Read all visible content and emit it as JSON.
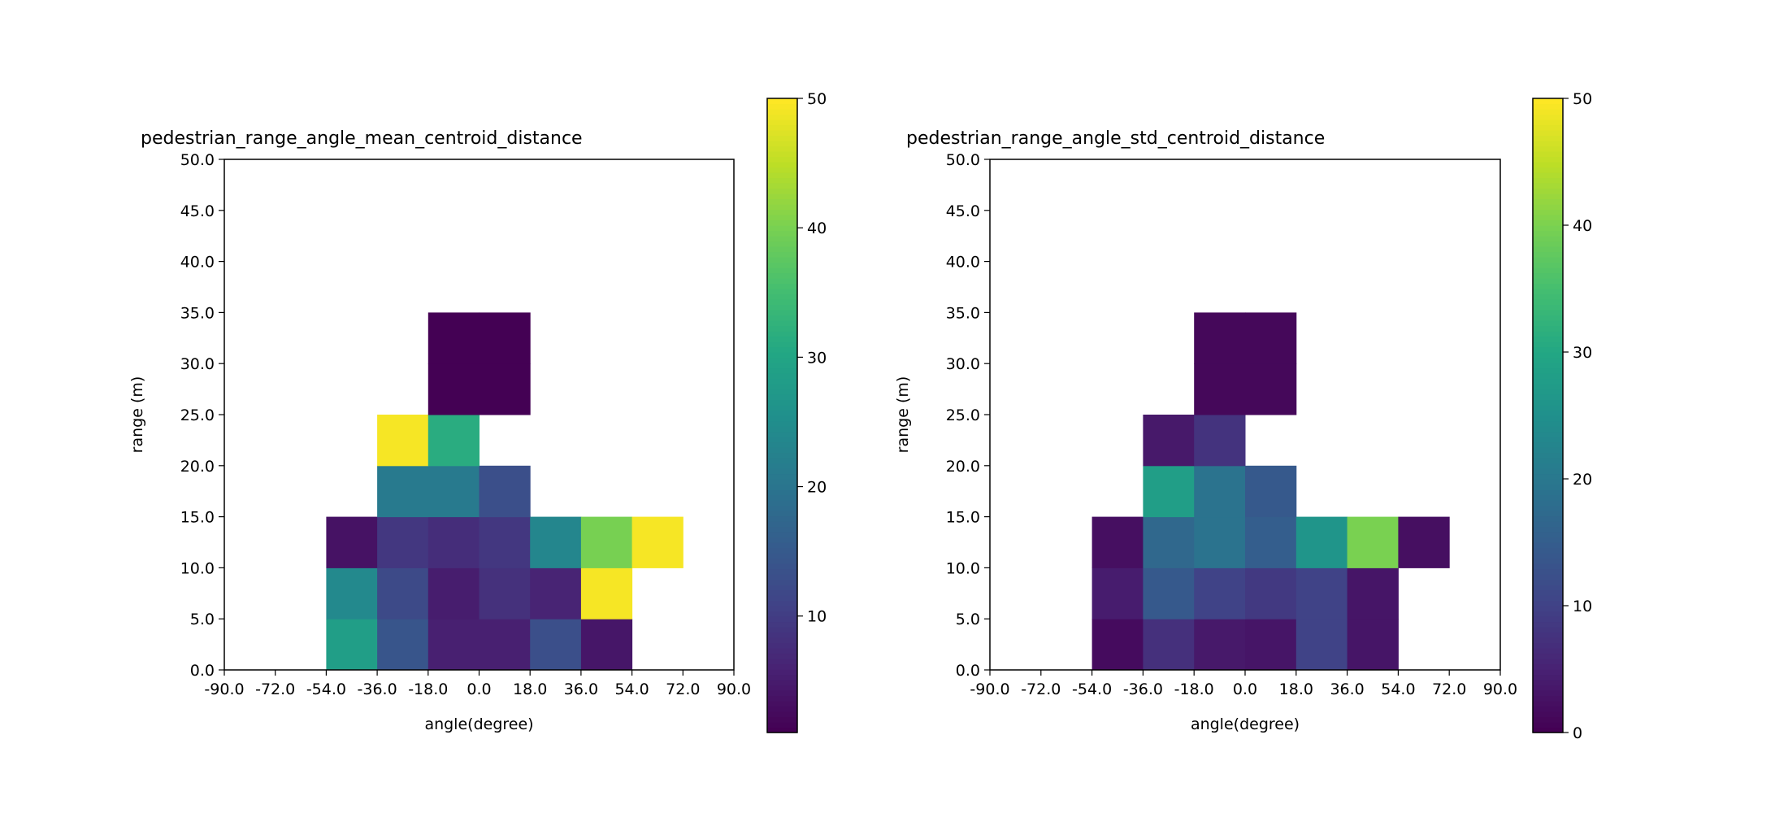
{
  "colormap": "viridis",
  "chart_data": [
    {
      "type": "heatmap",
      "title": "pedestrian_range_angle_mean_centroid_distance",
      "xlabel": "angle(degree)",
      "ylabel": "range (m)",
      "x_ticks": [
        "-90.0",
        "-72.0",
        "-54.0",
        "-36.0",
        "-18.0",
        "0.0",
        "18.0",
        "36.0",
        "54.0",
        "72.0",
        "90.0"
      ],
      "y_ticks": [
        "0.0",
        "5.0",
        "10.0",
        "15.0",
        "20.0",
        "25.0",
        "30.0",
        "35.0",
        "40.0",
        "45.0",
        "50.0"
      ],
      "xlim": [
        -90,
        90
      ],
      "ylim": [
        0,
        50
      ],
      "x_bin_edges": [
        -90,
        -72,
        -54,
        -36,
        -18,
        0,
        18,
        36,
        54,
        72,
        90
      ],
      "y_bin_edges": [
        0,
        5,
        10,
        15,
        20,
        25,
        30,
        35,
        40,
        45,
        50
      ],
      "colorbar": {
        "min": 1,
        "max": 50,
        "ticks": [
          "10",
          "20",
          "30",
          "40",
          "50"
        ],
        "tick_values": [
          10,
          20,
          30,
          40,
          50
        ]
      },
      "values": [
        [
          null,
          null,
          28.5,
          14.0,
          5.5,
          5.5,
          13.0,
          4.0,
          null,
          null
        ],
        [
          null,
          null,
          24.0,
          12.0,
          5.0,
          8.0,
          6.0,
          49.5,
          null,
          null
        ],
        [
          null,
          null,
          3.5,
          9.0,
          7.5,
          9.0,
          23.5,
          40.0,
          49.5,
          null
        ],
        [
          null,
          null,
          null,
          21.0,
          21.0,
          13.0,
          null,
          null,
          null,
          null
        ],
        [
          null,
          null,
          null,
          49.5,
          31.5,
          null,
          null,
          null,
          null,
          null
        ],
        [
          null,
          null,
          null,
          null,
          1.0,
          1.0,
          null,
          null,
          null,
          null
        ],
        [
          null,
          null,
          null,
          null,
          1.0,
          1.0,
          null,
          null,
          null,
          null
        ],
        [
          null,
          null,
          null,
          null,
          null,
          null,
          null,
          null,
          null,
          null
        ],
        [
          null,
          null,
          null,
          null,
          null,
          null,
          null,
          null,
          null,
          null
        ],
        [
          null,
          null,
          null,
          null,
          null,
          null,
          null,
          null,
          null,
          null
        ]
      ]
    },
    {
      "type": "heatmap",
      "title": "pedestrian_range_angle_std_centroid_distance",
      "xlabel": "angle(degree)",
      "ylabel": "range (m)",
      "x_ticks": [
        "-90.0",
        "-72.0",
        "-54.0",
        "-36.0",
        "-18.0",
        "0.0",
        "18.0",
        "36.0",
        "54.0",
        "72.0",
        "90.0"
      ],
      "y_ticks": [
        "0.0",
        "5.0",
        "10.0",
        "15.0",
        "20.0",
        "25.0",
        "30.0",
        "35.0",
        "40.0",
        "45.0",
        "50.0"
      ],
      "xlim": [
        -90,
        90
      ],
      "ylim": [
        0,
        50
      ],
      "x_bin_edges": [
        -90,
        -72,
        -54,
        -36,
        -18,
        0,
        18,
        36,
        54,
        72,
        90
      ],
      "y_bin_edges": [
        0,
        5,
        10,
        15,
        20,
        25,
        30,
        35,
        40,
        45,
        50
      ],
      "colorbar": {
        "min": 0,
        "max": 50,
        "ticks": [
          "0",
          "10",
          "20",
          "30",
          "40",
          "50"
        ],
        "tick_values": [
          0,
          10,
          20,
          30,
          40,
          50
        ]
      },
      "values": [
        [
          null,
          null,
          1.5,
          7.0,
          3.5,
          3.0,
          10.0,
          3.0,
          null,
          null
        ],
        [
          null,
          null,
          4.0,
          14.0,
          10.0,
          8.5,
          10.0,
          3.0,
          null,
          null
        ],
        [
          null,
          null,
          2.0,
          17.0,
          19.0,
          15.0,
          26.0,
          40.0,
          2.0,
          null
        ],
        [
          null,
          null,
          null,
          28.0,
          19.0,
          14.0,
          null,
          null,
          null,
          null
        ],
        [
          null,
          null,
          null,
          3.5,
          7.5,
          null,
          null,
          null,
          null,
          null
        ],
        [
          null,
          null,
          null,
          null,
          1.0,
          1.0,
          null,
          null,
          null,
          null
        ],
        [
          null,
          null,
          null,
          null,
          1.0,
          1.0,
          null,
          null,
          null,
          null
        ],
        [
          null,
          null,
          null,
          null,
          null,
          null,
          null,
          null,
          null,
          null
        ],
        [
          null,
          null,
          null,
          null,
          null,
          null,
          null,
          null,
          null,
          null
        ],
        [
          null,
          null,
          null,
          null,
          null,
          null,
          null,
          null,
          null,
          null
        ]
      ]
    }
  ]
}
